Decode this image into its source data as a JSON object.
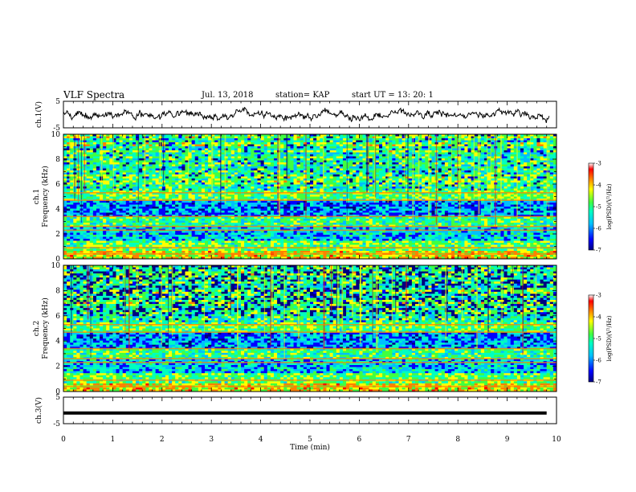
{
  "header": {
    "title": "VLF Spectra",
    "date": "Jul. 13, 2018",
    "station": "station= KAP",
    "start": "start UT = 13: 20: 1"
  },
  "chart_data": [
    {
      "type": "line",
      "panel": "ch1-waveform",
      "ylabel": "ch.1(V)",
      "ylim": [
        -5,
        5
      ],
      "yticks": [
        5,
        -5
      ],
      "xlim": [
        0,
        10
      ],
      "note": "dense noisy waveform oscillating around about 0 V"
    },
    {
      "type": "heatmap",
      "panel": "ch1-spectrogram",
      "ylabel": "ch.1 Frequency (kHz)",
      "ylim": [
        0,
        10
      ],
      "yticks": [
        0,
        2,
        4,
        6,
        8,
        10
      ],
      "xlim": [
        0,
        10
      ],
      "colorbar": {
        "label": "log(PSD)(V²/Hz)",
        "range": [
          -7,
          -3
        ],
        "ticks": [
          "-3",
          "-4",
          "-5",
          "-6",
          "-7"
        ]
      }
    },
    {
      "type": "heatmap",
      "panel": "ch2-spectrogram",
      "ylabel": "ch.2 Frequency (kHz)",
      "ylim": [
        0,
        10
      ],
      "yticks": [
        0,
        2,
        4,
        6,
        8,
        10
      ],
      "xlim": [
        0,
        10
      ],
      "colorbar": {
        "label": "log(PSD)(V²/Hz)",
        "range": [
          -7,
          -3
        ],
        "ticks": [
          "-3",
          "-4",
          "-5",
          "-6",
          "-7"
        ]
      }
    },
    {
      "type": "line",
      "panel": "ch3-waveform",
      "ylabel": "ch.3(V)",
      "ylim": [
        -5,
        5
      ],
      "yticks": [
        5,
        -5
      ],
      "xlim": [
        0,
        10
      ],
      "x": [
        0,
        9.8
      ],
      "y": [
        -1,
        -1
      ]
    }
  ],
  "xaxis": {
    "label": "Time (min)",
    "ticks": [
      "0",
      "1",
      "2",
      "3",
      "4",
      "5",
      "6",
      "7",
      "8",
      "9",
      "10"
    ]
  },
  "colors": {
    "cmap": [
      "#000080",
      "#0000ff",
      "#00bfff",
      "#00ffbf",
      "#40ff40",
      "#ffff00",
      "#ff8000",
      "#ff0000",
      "#ffffff"
    ]
  }
}
